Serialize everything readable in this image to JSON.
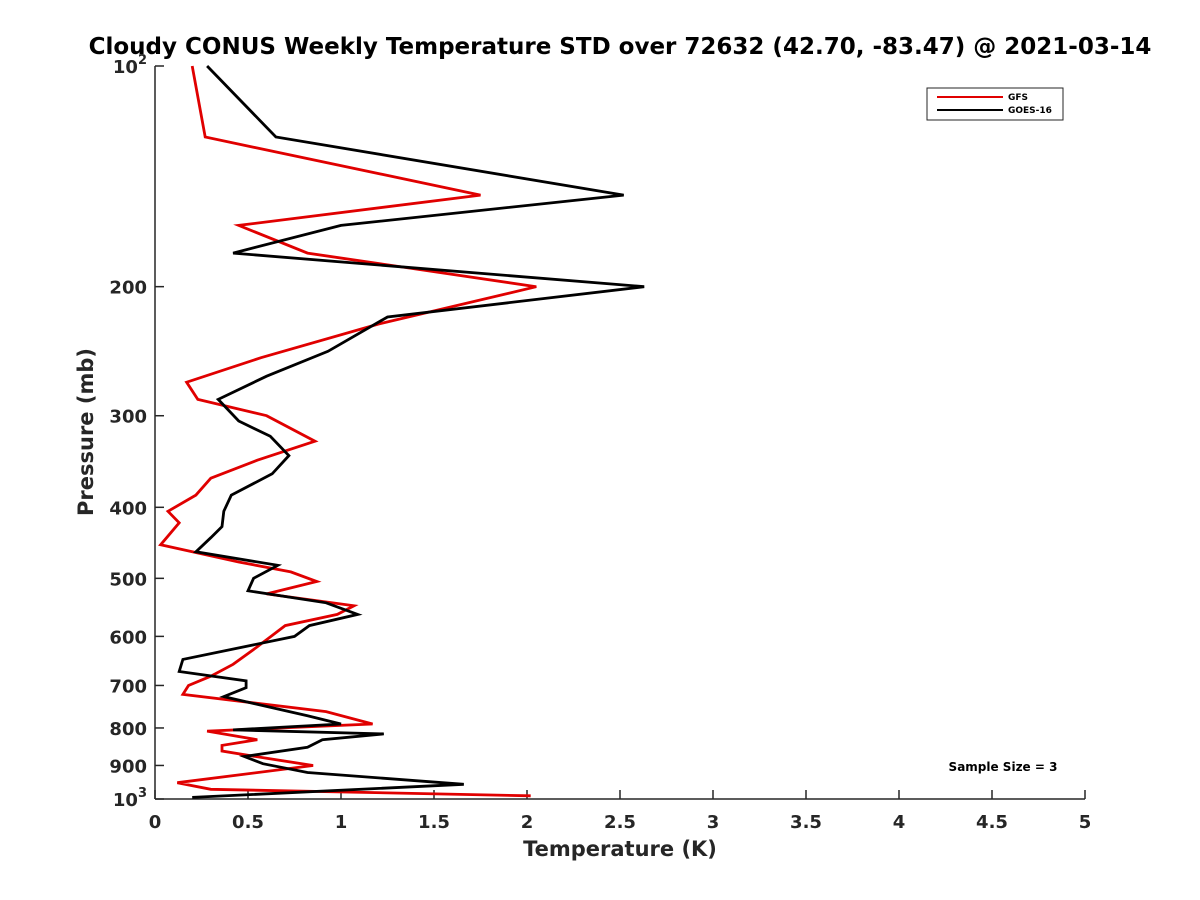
{
  "chart_data": {
    "type": "line",
    "title": "Cloudy CONUS Weekly Temperature STD over 72632 (42.70, -83.47) @ 2021-03-14",
    "xlabel": "Temperature (K)",
    "ylabel": "Pressure (mb)",
    "xlim": [
      0,
      5
    ],
    "ylim": [
      100,
      1000
    ],
    "y_scale": "log",
    "y_reversed": true,
    "x_ticks": [
      0,
      0.5,
      1,
      1.5,
      2,
      2.5,
      3,
      3.5,
      4,
      4.5,
      5
    ],
    "x_tick_labels": [
      "0",
      "0.5",
      "1",
      "1.5",
      "2",
      "2.5",
      "3",
      "3.5",
      "4",
      "4.5",
      "5"
    ],
    "y_ticks": [
      100,
      200,
      300,
      400,
      500,
      600,
      700,
      800,
      900,
      1000
    ],
    "y_tick_labels": [
      "10^2",
      "200",
      "300",
      "400",
      "500",
      "600",
      "700",
      "800",
      "900",
      "10^3"
    ],
    "grid": false,
    "legend_position": "top-right",
    "annotation": "Sample Size = 3",
    "series": [
      {
        "name": "GFS",
        "color": "#e00000",
        "points": [
          [
            0.2,
            100
          ],
          [
            0.27,
            125
          ],
          [
            1.75,
            150
          ],
          [
            0.45,
            165
          ],
          [
            0.82,
            180
          ],
          [
            2.05,
            200
          ],
          [
            1.2,
            225
          ],
          [
            0.57,
            250
          ],
          [
            0.17,
            270
          ],
          [
            0.23,
            285
          ],
          [
            0.6,
            300
          ],
          [
            0.86,
            325
          ],
          [
            0.55,
            345
          ],
          [
            0.3,
            365
          ],
          [
            0.22,
            385
          ],
          [
            0.07,
            405
          ],
          [
            0.13,
            420
          ],
          [
            0.03,
            450
          ],
          [
            0.45,
            475
          ],
          [
            0.73,
            490
          ],
          [
            0.87,
            505
          ],
          [
            0.6,
            525
          ],
          [
            1.07,
            545
          ],
          [
            0.98,
            560
          ],
          [
            0.7,
            580
          ],
          [
            0.55,
            620
          ],
          [
            0.42,
            655
          ],
          [
            0.3,
            680
          ],
          [
            0.18,
            700
          ],
          [
            0.15,
            720
          ],
          [
            0.92,
            760
          ],
          [
            1.17,
            790
          ],
          [
            0.28,
            808
          ],
          [
            0.55,
            830
          ],
          [
            0.36,
            845
          ],
          [
            0.36,
            860
          ],
          [
            0.6,
            880
          ],
          [
            0.85,
            900
          ],
          [
            0.12,
            950
          ],
          [
            0.3,
            970
          ],
          [
            2.02,
            990
          ]
        ]
      },
      {
        "name": "GOES-16",
        "color": "#000000",
        "points": [
          [
            0.28,
            100
          ],
          [
            0.65,
            125
          ],
          [
            2.52,
            150
          ],
          [
            1.0,
            165
          ],
          [
            0.42,
            180
          ],
          [
            2.63,
            200
          ],
          [
            1.25,
            220
          ],
          [
            0.93,
            245
          ],
          [
            0.6,
            265
          ],
          [
            0.34,
            285
          ],
          [
            0.45,
            305
          ],
          [
            0.62,
            320
          ],
          [
            0.72,
            340
          ],
          [
            0.63,
            360
          ],
          [
            0.41,
            385
          ],
          [
            0.37,
            405
          ],
          [
            0.36,
            425
          ],
          [
            0.3,
            440
          ],
          [
            0.22,
            460
          ],
          [
            0.66,
            480
          ],
          [
            0.53,
            500
          ],
          [
            0.5,
            520
          ],
          [
            0.92,
            540
          ],
          [
            1.09,
            560
          ],
          [
            0.83,
            580
          ],
          [
            0.75,
            600
          ],
          [
            0.15,
            645
          ],
          [
            0.13,
            670
          ],
          [
            0.49,
            690
          ],
          [
            0.49,
            705
          ],
          [
            0.37,
            725
          ],
          [
            0.82,
            770
          ],
          [
            1.0,
            790
          ],
          [
            0.42,
            805
          ],
          [
            1.23,
            815
          ],
          [
            0.9,
            830
          ],
          [
            0.82,
            850
          ],
          [
            0.48,
            875
          ],
          [
            0.58,
            895
          ],
          [
            0.82,
            920
          ],
          [
            1.66,
            955
          ],
          [
            0.2,
            995
          ]
        ]
      }
    ]
  }
}
